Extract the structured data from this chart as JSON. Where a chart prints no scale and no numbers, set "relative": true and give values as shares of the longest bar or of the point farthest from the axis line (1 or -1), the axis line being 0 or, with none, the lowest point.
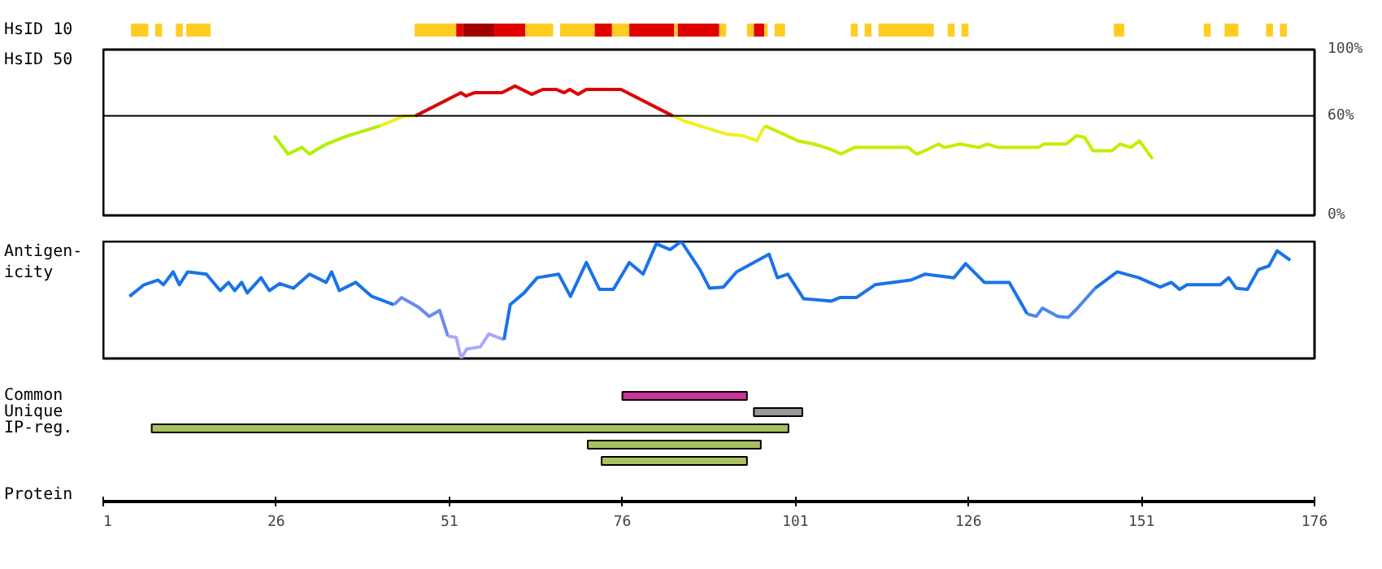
{
  "chart_data": [
    {
      "type": "bar",
      "orientation": "horizontal",
      "categories": [
        "HsID 10"
      ],
      "xlim": [
        1,
        176
      ],
      "tick_labels": "y",
      "series": [
        {
          "color": "#ffcc22",
          "base": [
            5
          ],
          "values": [
            2.5
          ]
        },
        {
          "color": "#ffcc22",
          "base": [
            8.5
          ],
          "values": [
            1
          ]
        },
        {
          "color": "#ffcc22",
          "base": [
            11.5
          ],
          "values": [
            1
          ]
        },
        {
          "color": "#ffcc22",
          "base": [
            13
          ],
          "values": [
            3.5
          ]
        },
        {
          "color": "#ffcc22",
          "base": [
            46
          ],
          "values": [
            6
          ]
        },
        {
          "color": "#e00000",
          "base": [
            52
          ],
          "values": [
            1
          ]
        },
        {
          "color": "#a00000",
          "base": [
            53
          ],
          "values": [
            4.5
          ]
        },
        {
          "color": "#e00000",
          "base": [
            57.5
          ],
          "values": [
            4.5
          ]
        },
        {
          "color": "#ffcc22",
          "base": [
            62
          ],
          "values": [
            4
          ]
        },
        {
          "color": "#ffcc22",
          "base": [
            67
          ],
          "values": [
            5
          ]
        },
        {
          "color": "#e00000",
          "base": [
            72
          ],
          "values": [
            2.5
          ]
        },
        {
          "color": "#ffcc22",
          "base": [
            74.5
          ],
          "values": [
            2.5
          ]
        },
        {
          "color": "#e00000",
          "base": [
            77
          ],
          "values": [
            6.5
          ]
        },
        {
          "color": "#ffcc22",
          "base": [
            83.5
          ],
          "values": [
            0.5
          ]
        },
        {
          "color": "#e00000",
          "base": [
            84
          ],
          "values": [
            6
          ]
        },
        {
          "color": "#ffcc22",
          "base": [
            90
          ],
          "values": [
            1
          ]
        },
        {
          "color": "#ffcc22",
          "base": [
            94
          ],
          "values": [
            1
          ]
        },
        {
          "color": "#e00000",
          "base": [
            95
          ],
          "values": [
            1.5
          ]
        },
        {
          "color": "#ffcc22",
          "base": [
            96.5
          ],
          "values": [
            0.5
          ]
        },
        {
          "color": "#ffcc22",
          "base": [
            98
          ],
          "values": [
            1.5
          ]
        },
        {
          "color": "#ffcc22",
          "base": [
            109
          ],
          "values": [
            1
          ]
        },
        {
          "color": "#ffcc22",
          "base": [
            111
          ],
          "values": [
            1
          ]
        },
        {
          "color": "#ffcc22",
          "base": [
            113
          ],
          "values": [
            8
          ]
        },
        {
          "color": "#ffcc22",
          "base": [
            123
          ],
          "values": [
            1
          ]
        },
        {
          "color": "#ffcc22",
          "base": [
            125
          ],
          "values": [
            1
          ]
        },
        {
          "color": "#ffcc22",
          "base": [
            147
          ],
          "values": [
            1.5
          ]
        },
        {
          "color": "#ffcc22",
          "base": [
            160
          ],
          "values": [
            1
          ]
        },
        {
          "color": "#ffcc22",
          "base": [
            163
          ],
          "values": [
            2
          ]
        },
        {
          "color": "#ffcc22",
          "base": [
            169
          ],
          "values": [
            1
          ]
        },
        {
          "color": "#ffcc22",
          "base": [
            171
          ],
          "values": [
            1
          ]
        }
      ]
    },
    {
      "type": "line",
      "ylabel": "HsID 50",
      "xlim": [
        1,
        176
      ],
      "ylim": [
        0,
        100
      ],
      "yticks": [
        {
          "value": 0,
          "label": "0%"
        },
        {
          "value": 60,
          "label": "60%"
        },
        {
          "value": 100,
          "label": "100%"
        }
      ],
      "tick_labels": "y",
      "ref_lines": [
        {
          "axis": "y",
          "value": 60,
          "label": null,
          "color": "#000000"
        }
      ],
      "series": [
        {
          "color": "#b0f000",
          "x": [
            25.7,
            27.7,
            29.7,
            30.8,
            33.2,
            36.3,
            41
          ],
          "values": [
            48,
            37,
            41,
            37,
            43,
            48,
            54
          ]
        },
        {
          "color": "#f0f020",
          "x": [
            41,
            44.5,
            46.1
          ],
          "values": [
            54,
            60,
            60
          ]
        },
        {
          "color": "#e00000",
          "x": [
            46.1,
            52.7,
            53.4,
            54.6,
            58.6,
            60.5,
            62.9,
            64.5,
            66.4,
            67.6,
            68.4,
            69.6,
            70.8,
            75.8,
            83.3
          ],
          "values": [
            60,
            74,
            72,
            74,
            74,
            78,
            73,
            76,
            76,
            74,
            76,
            73,
            76,
            76,
            60
          ]
        },
        {
          "color": "#f0f020",
          "x": [
            83.3,
            84.9,
            87.2,
            91.1,
            93.5,
            95.4,
            96.6
          ],
          "values": [
            60,
            57,
            54,
            49,
            48,
            45,
            54
          ]
        },
        {
          "color": "#c0f000",
          "x": [
            96.6,
            99.3,
            101.3,
            103.7,
            106,
            107.6,
            109.5,
            117.3,
            118.5,
            119.7,
            121.7,
            122.5,
            124.8,
            127.5,
            128.7,
            130.3,
            136.1,
            136.9,
            140.1,
            141.6,
            142.8,
            144,
            146.7,
            147.9,
            149.5,
            150.7,
            152.6
          ],
          "values": [
            54,
            49,
            45,
            43,
            40,
            37,
            41,
            41,
            37,
            39,
            43,
            41,
            43,
            41,
            43,
            41,
            41,
            43,
            43,
            48,
            47,
            39,
            39,
            43,
            41,
            45,
            34
          ]
        }
      ]
    },
    {
      "type": "line",
      "ylabel": "Antigen-\nicity",
      "xlim": [
        1,
        176
      ],
      "relative": true,
      "tick_labels": false,
      "series": [
        {
          "color": "#1a73e8",
          "x": [
            4.8,
            6.9,
            8.9,
            9.7,
            11.1,
            12,
            13.2,
            15.9,
            17.9,
            19.1,
            20,
            21,
            21.8,
            23.8,
            25,
            26.5,
            28.5,
            30.8,
            33.2,
            34,
            35.1,
            37.5,
            39.8,
            43
          ],
          "values": [
            0.53,
            0.63,
            0.67,
            0.63,
            0.74,
            0.63,
            0.74,
            0.72,
            0.58,
            0.65,
            0.58,
            0.65,
            0.56,
            0.69,
            0.58,
            0.64,
            0.6,
            0.72,
            0.65,
            0.74,
            0.58,
            0.65,
            0.53,
            0.46
          ]
        },
        {
          "color": "#6a8af0",
          "x": [
            43,
            44.1,
            46.5,
            48.1,
            49.6,
            50.8
          ],
          "values": [
            0.46,
            0.52,
            0.44,
            0.36,
            0.41,
            0.19
          ]
        },
        {
          "color": "#a8a8f8",
          "x": [
            50.8,
            52,
            52.7,
            53.5,
            55.5,
            56.7,
            58.9
          ],
          "values": [
            0.19,
            0.18,
            0,
            0.08,
            0.1,
            0.21,
            0.16
          ]
        },
        {
          "color": "#1a73e8",
          "x": [
            58.9,
            59.8,
            61.8,
            63.7,
            66.8,
            68.5,
            70.8,
            72.7,
            74.7,
            77,
            79,
            80.9,
            82.9,
            84.5,
            87.2,
            88.6,
            90.6,
            92.5,
            97.2,
            98.4,
            99.9,
            102.2,
            106.2,
            107.4,
            109.8,
            112.5,
            117.7,
            119.7,
            123.9,
            125.6,
            128.3,
            131.9,
            134.5
          ],
          "values": [
            0.16,
            0.46,
            0.56,
            0.69,
            0.72,
            0.53,
            0.82,
            0.59,
            0.59,
            0.82,
            0.72,
            0.98,
            0.93,
            1,
            0.76,
            0.6,
            0.61,
            0.74,
            0.89,
            0.69,
            0.72,
            0.51,
            0.49,
            0.52,
            0.52,
            0.63,
            0.67,
            0.72,
            0.69,
            0.81,
            0.65,
            0.65,
            0.38
          ]
        },
        {
          "color": "#4a86f0",
          "x": [
            134.5,
            135.8,
            136.7,
            138.9,
            140.4,
            141.6,
            144.3
          ],
          "values": [
            0.38,
            0.36,
            0.43,
            0.36,
            0.35,
            0.42,
            0.6
          ]
        },
        {
          "color": "#1a73e8",
          "x": [
            144.3,
            147.5,
            150.6,
            153.7,
            155.3,
            156.5,
            157.6,
            162.4,
            163.6,
            164.7,
            166.3,
            167.9,
            169.4,
            170.6,
            172.5
          ],
          "values": [
            0.6,
            0.74,
            0.69,
            0.61,
            0.65,
            0.59,
            0.63,
            0.63,
            0.69,
            0.6,
            0.59,
            0.76,
            0.79,
            0.92,
            0.84
          ]
        }
      ]
    },
    {
      "type": "bar",
      "orientation": "horizontal",
      "xlabel": "Protein",
      "categories": [
        "Common",
        "Unique",
        "IP-reg.",
        null,
        null
      ],
      "base": [
        76,
        95,
        8,
        71,
        73
      ],
      "values": [
        18,
        7,
        92,
        25,
        21
      ],
      "colors": [
        "#cc3399",
        "#999999",
        "#a8c060",
        "#a8c060",
        "#a8c060"
      ],
      "xlim": [
        1,
        176
      ],
      "xticks": [
        1,
        26,
        51,
        76,
        101,
        126,
        151,
        176
      ]
    }
  ]
}
